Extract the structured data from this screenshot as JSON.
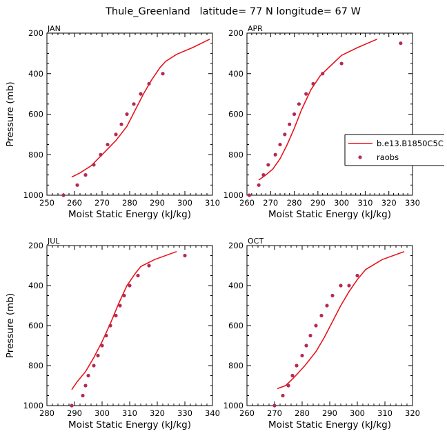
{
  "figure": {
    "title": "Thule_Greenland   latitude= 77 N longitude= 67 W"
  },
  "colors": {
    "model": "#e8141a",
    "obs": "#b52a55",
    "axis": "#000000"
  },
  "chart_data": [
    {
      "type": "line",
      "panel_label": "JAN",
      "xlabel": "Moist Static Energy (kJ/kg)",
      "ylabel": "Pressure (mb)",
      "xlim": [
        250,
        310
      ],
      "ylim": [
        1000,
        200
      ],
      "x_ticks": [
        250,
        260,
        270,
        280,
        290,
        300,
        310
      ],
      "y_ticks": [
        200,
        400,
        600,
        800,
        1000
      ],
      "grid": false,
      "series": [
        {
          "name": "b.e13.B1850C5C",
          "style": "line",
          "points": [
            [
              259,
              910
            ],
            [
              262,
              890
            ],
            [
              266,
              855
            ],
            [
              270,
              800
            ],
            [
              275,
              730
            ],
            [
              279,
              660
            ],
            [
              282,
              580
            ],
            [
              285,
              500
            ],
            [
              288,
              430
            ],
            [
              291,
              370
            ],
            [
              293,
              340
            ],
            [
              297,
              305
            ],
            [
              303,
              270
            ],
            [
              309,
              230
            ]
          ]
        },
        {
          "name": "raobs",
          "style": "marker",
          "points": [
            [
              256,
              1000
            ],
            [
              261,
              950
            ],
            [
              264,
              900
            ],
            [
              267,
              850
            ],
            [
              269.5,
              800
            ],
            [
              272,
              750
            ],
            [
              275,
              700
            ],
            [
              277,
              650
            ],
            [
              279,
              600
            ],
            [
              281.5,
              550
            ],
            [
              284,
              500
            ],
            [
              287,
              450
            ],
            [
              292,
              400
            ]
          ]
        }
      ]
    },
    {
      "type": "line",
      "panel_label": "APR",
      "xlabel": "Moist Static Energy (kJ/kg)",
      "ylabel": "",
      "xlim": [
        260,
        330
      ],
      "ylim": [
        1000,
        200
      ],
      "x_ticks": [
        260,
        270,
        280,
        290,
        300,
        310,
        320,
        330
      ],
      "y_ticks": [
        200,
        400,
        600,
        800,
        1000
      ],
      "grid": false,
      "legend": {
        "position": "right",
        "entries": [
          "b.e13.B1850C5C",
          "raobs"
        ]
      },
      "series": [
        {
          "name": "b.e13.B1850C5C",
          "style": "line",
          "points": [
            [
              265,
              925
            ],
            [
              268,
              900
            ],
            [
              271,
              870
            ],
            [
              274,
              820
            ],
            [
              277,
              750
            ],
            [
              280,
              670
            ],
            [
              283,
              580
            ],
            [
              287,
              480
            ],
            [
              291,
              410
            ],
            [
              295,
              365
            ],
            [
              300,
              310
            ],
            [
              307,
              270
            ],
            [
              315,
              230
            ]
          ]
        },
        {
          "name": "raobs",
          "style": "marker",
          "points": [
            [
              261,
              1000
            ],
            [
              265,
              950
            ],
            [
              267,
              900
            ],
            [
              269,
              850
            ],
            [
              272,
              800
            ],
            [
              274,
              750
            ],
            [
              276,
              700
            ],
            [
              278,
              650
            ],
            [
              280,
              600
            ],
            [
              282,
              550
            ],
            [
              285,
              500
            ],
            [
              288,
              450
            ],
            [
              292,
              400
            ],
            [
              300,
              350
            ],
            [
              325,
              250
            ]
          ]
        }
      ]
    },
    {
      "type": "line",
      "panel_label": "JUL",
      "xlabel": "Moist Static Energy (kJ/kg)",
      "ylabel": "Pressure (mb)",
      "xlim": [
        280,
        340
      ],
      "ylim": [
        1000,
        200
      ],
      "x_ticks": [
        280,
        290,
        300,
        310,
        320,
        330,
        340
      ],
      "y_ticks": [
        200,
        400,
        600,
        800,
        1000
      ],
      "grid": false,
      "series": [
        {
          "name": "b.e13.B1850C5C",
          "style": "line",
          "points": [
            [
              289,
              920
            ],
            [
              291,
              880
            ],
            [
              294,
              830
            ],
            [
              297,
              760
            ],
            [
              300,
              680
            ],
            [
              303,
              590
            ],
            [
              306,
              490
            ],
            [
              309,
              400
            ],
            [
              312,
              340
            ],
            [
              314,
              305
            ],
            [
              319,
              270
            ],
            [
              327,
              230
            ]
          ]
        },
        {
          "name": "raobs",
          "style": "marker",
          "points": [
            [
              289,
              1000
            ],
            [
              293,
              950
            ],
            [
              294,
              900
            ],
            [
              295,
              850
            ],
            [
              297,
              800
            ],
            [
              298.5,
              750
            ],
            [
              300,
              700
            ],
            [
              301.5,
              650
            ],
            [
              303,
              600
            ],
            [
              305,
              550
            ],
            [
              306.5,
              500
            ],
            [
              308,
              450
            ],
            [
              310,
              400
            ],
            [
              313,
              350
            ],
            [
              317,
              300
            ],
            [
              330,
              250
            ]
          ]
        }
      ]
    },
    {
      "type": "line",
      "panel_label": "OCT",
      "xlabel": "Moist Static Energy (kJ/kg)",
      "ylabel": "",
      "xlim": [
        260,
        320
      ],
      "ylim": [
        1000,
        200
      ],
      "x_ticks": [
        260,
        270,
        280,
        290,
        300,
        310,
        320
      ],
      "y_ticks": [
        200,
        400,
        600,
        800,
        1000
      ],
      "grid": false,
      "series": [
        {
          "name": "b.e13.B1850C5C",
          "style": "line",
          "points": [
            [
              271,
              915
            ],
            [
              274,
              900
            ],
            [
              277,
              860
            ],
            [
              281,
              800
            ],
            [
              285,
              730
            ],
            [
              288,
              660
            ],
            [
              291,
              580
            ],
            [
              294,
              500
            ],
            [
              297,
              430
            ],
            [
              300,
              370
            ],
            [
              303,
              320
            ],
            [
              309,
              270
            ],
            [
              317,
              230
            ]
          ]
        },
        {
          "name": "raobs",
          "style": "marker",
          "points": [
            [
              270,
              1000
            ],
            [
              273,
              950
            ],
            [
              275,
              900
            ],
            [
              276.5,
              850
            ],
            [
              278,
              800
            ],
            [
              280,
              750
            ],
            [
              281.5,
              700
            ],
            [
              283,
              650
            ],
            [
              285,
              600
            ],
            [
              287,
              550
            ],
            [
              289,
              500
            ],
            [
              291,
              450
            ],
            [
              294,
              400
            ],
            [
              297,
              400
            ],
            [
              300,
              350
            ]
          ]
        }
      ]
    }
  ]
}
